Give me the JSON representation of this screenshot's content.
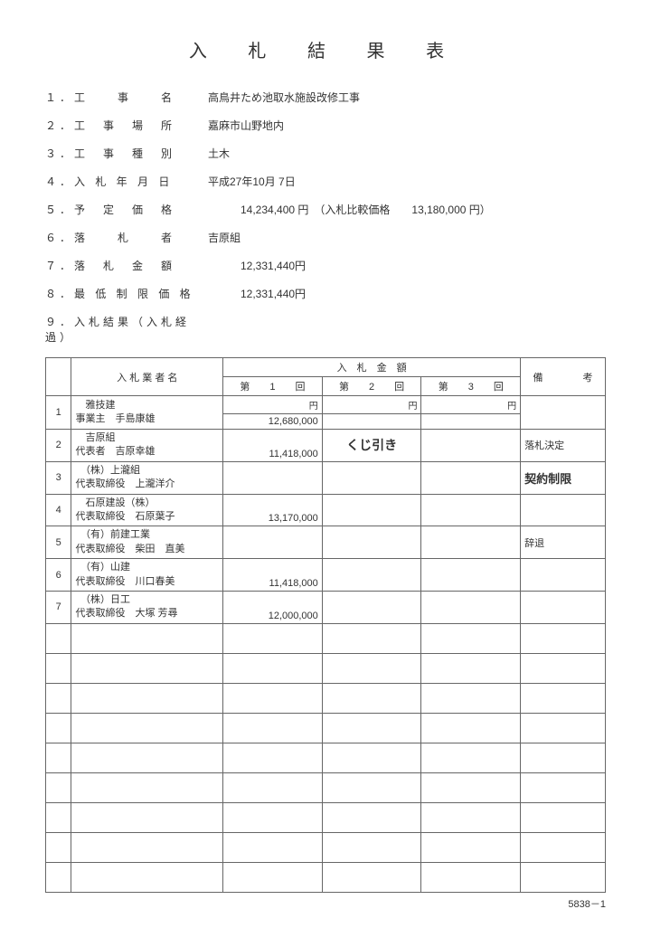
{
  "title": "入 札 結 果 表",
  "info": [
    {
      "label": "１．工　　事　　名",
      "value": "高鳥井ため池取水施設改修工事"
    },
    {
      "label": "２．工　事　場　所",
      "value": "嘉麻市山野地内"
    },
    {
      "label": "３．工　事　種　別",
      "value": "土木"
    },
    {
      "label": "４．入 札 年 月 日",
      "value": "平成27年10月 7日"
    },
    {
      "label": "５．予　定　価　格",
      "value": "　　　14,234,400 円　（入札比較価格　　13,180,000 円）"
    },
    {
      "label": "６．落　　札　　者",
      "value": "吉原組"
    },
    {
      "label": "７．落　札　金　額",
      "value": "　　　12,331,440円"
    },
    {
      "label": "８．最 低 制 限 価 格",
      "value": "　　　12,331,440円"
    },
    {
      "label": "９．入札結果（入札経過）",
      "value": ""
    }
  ],
  "table": {
    "header": {
      "bidder": "入 札 業 者 名",
      "amount_group": "入　札　金　額",
      "round1": "第　　1　　回",
      "round2": "第　　2　　回",
      "round3": "第　　3　　回",
      "remark": "備　　　　考",
      "yen": "円"
    },
    "rows": [
      {
        "no": "1",
        "name1": "　雅技建",
        "name2": "事業主　手島康雄",
        "r1": "12,680,000",
        "r2": "",
        "r3": "",
        "remark": ""
      },
      {
        "no": "2",
        "name1": "　吉原組",
        "name2": "代表者　吉原幸雄",
        "r1": "11,418,000",
        "r2": "くじ引き",
        "r3": "",
        "remark": "落札決定"
      },
      {
        "no": "3",
        "name1": "　（株）上瀧組",
        "name2": "代表取締役　上瀧洋介",
        "r1": "",
        "r2": "",
        "r3": "",
        "remark": "契約制限",
        "remark_bold": true
      },
      {
        "no": "4",
        "name1": "　石原建設（株）",
        "name2": "代表取締役　石原葉子",
        "r1": "13,170,000",
        "r2": "",
        "r3": "",
        "remark": ""
      },
      {
        "no": "5",
        "name1": "　（有）前建工業",
        "name2": "代表取締役　柴田　直美",
        "r1": "",
        "r2": "",
        "r3": "",
        "remark": "辞退"
      },
      {
        "no": "6",
        "name1": "　（有）山建",
        "name2": "代表取締役　川口春美",
        "r1": "11,418,000",
        "r2": "",
        "r3": "",
        "remark": ""
      },
      {
        "no": "7",
        "name1": "　（株）日工",
        "name2": "代表取締役　大塚 芳尋",
        "r1": "12,000,000",
        "r2": "",
        "r3": "",
        "remark": ""
      }
    ],
    "empty_rows": 9
  },
  "page_no": "5838－1"
}
